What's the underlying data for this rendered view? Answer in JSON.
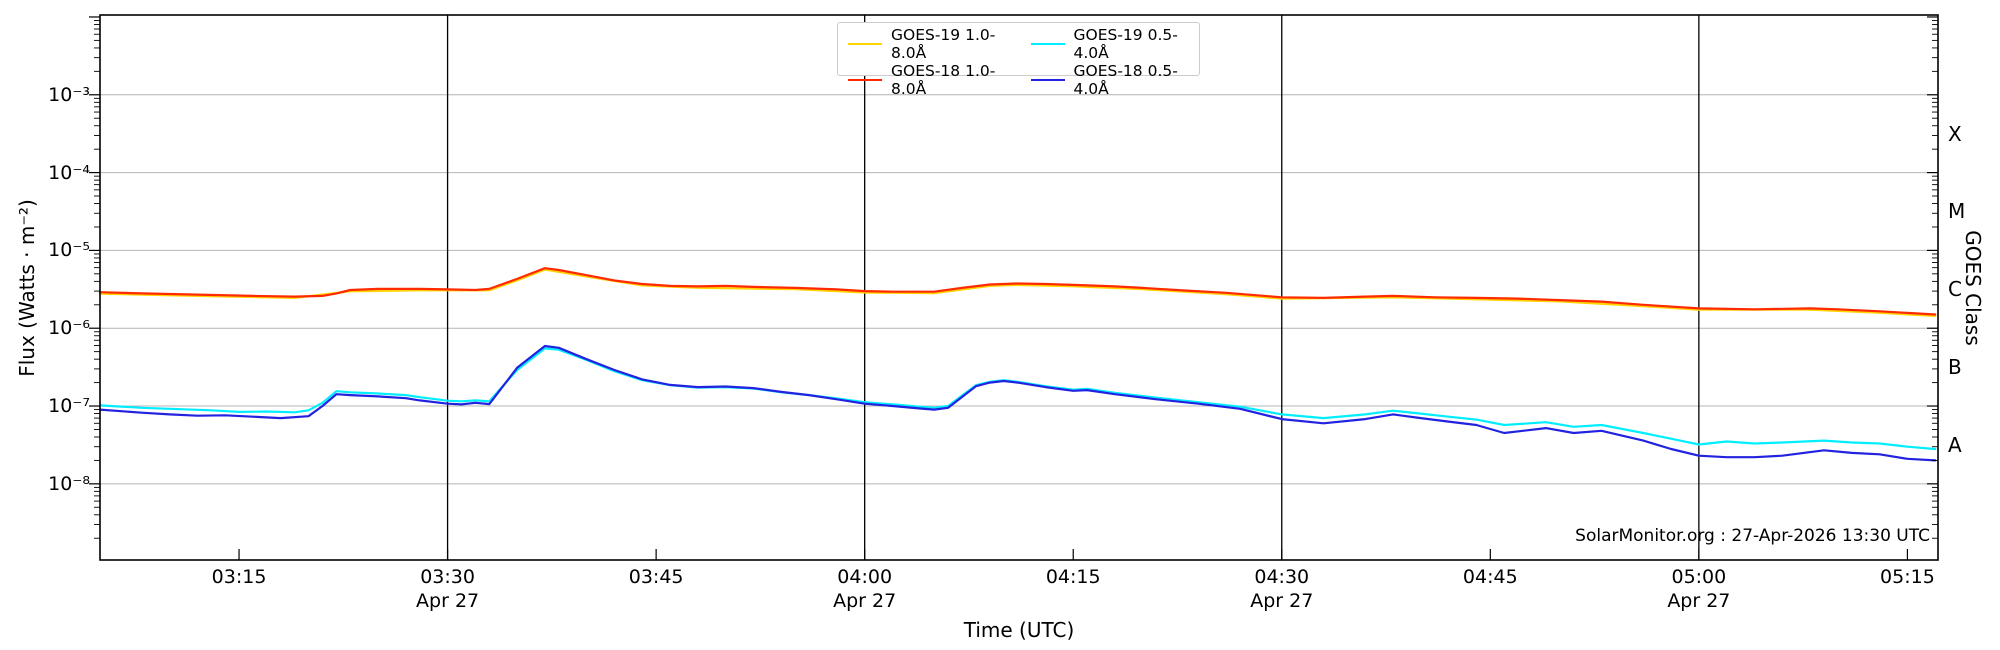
{
  "watermark": "SolarMonitor.org : 27-Apr-2026 13:30 UTC",
  "chart_data": {
    "type": "line",
    "xlabel": "Time (UTC)",
    "ylabel": "Flux (Watts · m⁻²)",
    "ylabel_right": "GOES Class",
    "date_label": "Apr 27",
    "grid": "horizontal decade gridlines, vertical black lines at each date tick",
    "legend_position": "top-center, 2 columns",
    "xlim_minutes": [
      5,
      137.2
    ],
    "ylim": [
      1.05e-09,
      0.0106
    ],
    "y_ticks": [
      {
        "exp": -3,
        "label": "10⁻³"
      },
      {
        "exp": -4,
        "label": "10⁻⁴"
      },
      {
        "exp": -5,
        "label": "10⁻⁵"
      },
      {
        "exp": -6,
        "label": "10⁻⁶"
      },
      {
        "exp": -7,
        "label": "10⁻⁷"
      },
      {
        "exp": -8,
        "label": "10⁻⁸"
      }
    ],
    "x_ticks": [
      {
        "t": 15,
        "label": "03:15"
      },
      {
        "t": 30,
        "label": "03:30",
        "date": "Apr 27"
      },
      {
        "t": 45,
        "label": "03:45"
      },
      {
        "t": 60,
        "label": "04:00",
        "date": "Apr 27"
      },
      {
        "t": 75,
        "label": "04:15"
      },
      {
        "t": 90,
        "label": "04:30",
        "date": "Apr 27"
      },
      {
        "t": 105,
        "label": "04:45"
      },
      {
        "t": 120,
        "label": "05:00",
        "date": "Apr 27"
      },
      {
        "t": 135,
        "label": "05:15"
      }
    ],
    "goes_classes": [
      {
        "label": "X",
        "between": [
          -4,
          -3
        ]
      },
      {
        "label": "M",
        "between": [
          -5,
          -4
        ]
      },
      {
        "label": "C",
        "between": [
          -6,
          -5
        ]
      },
      {
        "label": "B",
        "between": [
          -7,
          -6
        ]
      },
      {
        "label": "A",
        "between": [
          -8,
          -7
        ]
      }
    ],
    "legend": [
      {
        "id": "goes19-long",
        "label": "GOES-19 1.0-8.0Å",
        "color": "#ffd400"
      },
      {
        "id": "goes18-long",
        "label": "GOES-18 1.0-8.0Å",
        "color": "#ff2600"
      },
      {
        "id": "goes19-short",
        "label": "GOES-19 0.5-4.0Å",
        "color": "#00eeff"
      },
      {
        "id": "goes18-short",
        "label": "GOES-18 0.5-4.0Å",
        "color": "#2222e0"
      }
    ],
    "series": [
      {
        "id": "goes19-long",
        "name": "GOES-19 1.0-8.0Å",
        "color": "#ffd400",
        "points": [
          [
            5,
            2.78e-06
          ],
          [
            12,
            2.6e-06
          ],
          [
            19,
            2.45e-06
          ],
          [
            23,
            2.98e-06
          ],
          [
            28,
            3.07e-06
          ],
          [
            33,
            3.07e-06
          ],
          [
            35,
            4.13e-06
          ],
          [
            37,
            5.66e-06
          ],
          [
            40,
            4.6e-06
          ],
          [
            44,
            3.55e-06
          ],
          [
            48,
            3.31e-06
          ],
          [
            55,
            3.17e-06
          ],
          [
            60,
            2.88e-06
          ],
          [
            65,
            2.83e-06
          ],
          [
            69,
            3.5e-06
          ],
          [
            71,
            3.6e-06
          ],
          [
            75,
            3.46e-06
          ],
          [
            80,
            3.17e-06
          ],
          [
            86,
            2.74e-06
          ],
          [
            90,
            2.4e-06
          ],
          [
            98,
            2.5e-06
          ],
          [
            104,
            2.35e-06
          ],
          [
            110,
            2.21e-06
          ],
          [
            116,
            1.92e-06
          ],
          [
            120,
            1.73e-06
          ],
          [
            128,
            1.73e-06
          ],
          [
            133,
            1.58e-06
          ],
          [
            137,
            1.44e-06
          ]
        ]
      },
      {
        "id": "goes18-long",
        "name": "GOES-18 1.0-8.0Å",
        "color": "#ff2a00",
        "points": [
          [
            5,
            2.9e-06
          ],
          [
            8,
            2.8e-06
          ],
          [
            12,
            2.7e-06
          ],
          [
            16,
            2.6e-06
          ],
          [
            19,
            2.55e-06
          ],
          [
            21,
            2.6e-06
          ],
          [
            22,
            2.8e-06
          ],
          [
            23,
            3.1e-06
          ],
          [
            25,
            3.2e-06
          ],
          [
            28,
            3.2e-06
          ],
          [
            30,
            3.15e-06
          ],
          [
            32,
            3.1e-06
          ],
          [
            33,
            3.2e-06
          ],
          [
            35,
            4.3e-06
          ],
          [
            37,
            5.9e-06
          ],
          [
            38,
            5.6e-06
          ],
          [
            40,
            4.8e-06
          ],
          [
            42,
            4.1e-06
          ],
          [
            44,
            3.7e-06
          ],
          [
            46,
            3.5e-06
          ],
          [
            48,
            3.45e-06
          ],
          [
            50,
            3.5e-06
          ],
          [
            52,
            3.4e-06
          ],
          [
            55,
            3.3e-06
          ],
          [
            58,
            3.15e-06
          ],
          [
            60,
            3e-06
          ],
          [
            62,
            2.95e-06
          ],
          [
            65,
            2.95e-06
          ],
          [
            67,
            3.3e-06
          ],
          [
            69,
            3.65e-06
          ],
          [
            71,
            3.75e-06
          ],
          [
            73,
            3.7e-06
          ],
          [
            75,
            3.6e-06
          ],
          [
            78,
            3.45e-06
          ],
          [
            80,
            3.3e-06
          ],
          [
            83,
            3.05e-06
          ],
          [
            86,
            2.85e-06
          ],
          [
            90,
            2.5e-06
          ],
          [
            93,
            2.45e-06
          ],
          [
            96,
            2.55e-06
          ],
          [
            98,
            2.6e-06
          ],
          [
            101,
            2.5e-06
          ],
          [
            104,
            2.45e-06
          ],
          [
            107,
            2.4e-06
          ],
          [
            110,
            2.3e-06
          ],
          [
            113,
            2.2e-06
          ],
          [
            116,
            2e-06
          ],
          [
            120,
            1.8e-06
          ],
          [
            124,
            1.75e-06
          ],
          [
            128,
            1.8e-06
          ],
          [
            130,
            1.75e-06
          ],
          [
            133,
            1.65e-06
          ],
          [
            137,
            1.5e-06
          ]
        ]
      },
      {
        "id": "goes19-short",
        "name": "GOES-19 0.5-4.0Å",
        "color": "#00eeff",
        "points": [
          [
            5,
            1.02e-07
          ],
          [
            8,
            9.5e-08
          ],
          [
            10,
            9.2e-08
          ],
          [
            13,
            8.8e-08
          ],
          [
            15,
            8.4e-08
          ],
          [
            17,
            8.5e-08
          ],
          [
            19,
            8.3e-08
          ],
          [
            20,
            8.8e-08
          ],
          [
            21,
            1.1e-07
          ],
          [
            22,
            1.55e-07
          ],
          [
            23,
            1.5e-07
          ],
          [
            25,
            1.45e-07
          ],
          [
            27,
            1.38e-07
          ],
          [
            28,
            1.3e-07
          ],
          [
            30,
            1.17e-07
          ],
          [
            31,
            1.15e-07
          ],
          [
            32,
            1.18e-07
          ],
          [
            33,
            1.15e-07
          ],
          [
            35,
            2.9e-07
          ],
          [
            37,
            5.5e-07
          ],
          [
            38,
            5.3e-07
          ],
          [
            40,
            3.9e-07
          ],
          [
            42,
            2.8e-07
          ],
          [
            44,
            2.15e-07
          ],
          [
            46,
            1.85e-07
          ],
          [
            48,
            1.72e-07
          ],
          [
            50,
            1.75e-07
          ],
          [
            52,
            1.68e-07
          ],
          [
            54,
            1.5e-07
          ],
          [
            56,
            1.38e-07
          ],
          [
            58,
            1.25e-07
          ],
          [
            60,
            1.12e-07
          ],
          [
            62,
            1.05e-07
          ],
          [
            64,
            9.8e-08
          ],
          [
            65,
            9.5e-08
          ],
          [
            66,
            1e-07
          ],
          [
            68,
            1.85e-07
          ],
          [
            69,
            2.05e-07
          ],
          [
            70,
            2.15e-07
          ],
          [
            71,
            2.05e-07
          ],
          [
            73,
            1.8e-07
          ],
          [
            75,
            1.62e-07
          ],
          [
            76,
            1.66e-07
          ],
          [
            78,
            1.48e-07
          ],
          [
            81,
            1.28e-07
          ],
          [
            84,
            1.12e-07
          ],
          [
            87,
            9.8e-08
          ],
          [
            90,
            7.8e-08
          ],
          [
            93,
            7e-08
          ],
          [
            96,
            7.8e-08
          ],
          [
            98,
            8.7e-08
          ],
          [
            100,
            8e-08
          ],
          [
            102,
            7.3e-08
          ],
          [
            104,
            6.7e-08
          ],
          [
            106,
            5.7e-08
          ],
          [
            109,
            6.2e-08
          ],
          [
            111,
            5.4e-08
          ],
          [
            113,
            5.7e-08
          ],
          [
            116,
            4.5e-08
          ],
          [
            118,
            3.8e-08
          ],
          [
            120,
            3.2e-08
          ],
          [
            122,
            3.5e-08
          ],
          [
            124,
            3.3e-08
          ],
          [
            126,
            3.4e-08
          ],
          [
            129,
            3.6e-08
          ],
          [
            131,
            3.4e-08
          ],
          [
            133,
            3.3e-08
          ],
          [
            135,
            3e-08
          ],
          [
            137,
            2.8e-08
          ]
        ]
      },
      {
        "id": "goes18-short",
        "name": "GOES-18 0.5-4.0Å",
        "color": "#2222e0",
        "points": [
          [
            5,
            9e-08
          ],
          [
            8,
            8.2e-08
          ],
          [
            10,
            7.8e-08
          ],
          [
            12,
            7.5e-08
          ],
          [
            14,
            7.6e-08
          ],
          [
            16,
            7.3e-08
          ],
          [
            18,
            7e-08
          ],
          [
            20,
            7.4e-08
          ],
          [
            21,
            1e-07
          ],
          [
            22,
            1.42e-07
          ],
          [
            23,
            1.38e-07
          ],
          [
            25,
            1.33e-07
          ],
          [
            27,
            1.26e-07
          ],
          [
            28,
            1.18e-07
          ],
          [
            30,
            1.07e-07
          ],
          [
            31,
            1.05e-07
          ],
          [
            32,
            1.1e-07
          ],
          [
            33,
            1.06e-07
          ],
          [
            35,
            3.1e-07
          ],
          [
            37,
            5.9e-07
          ],
          [
            38,
            5.6e-07
          ],
          [
            40,
            4e-07
          ],
          [
            42,
            2.9e-07
          ],
          [
            44,
            2.2e-07
          ],
          [
            46,
            1.87e-07
          ],
          [
            48,
            1.75e-07
          ],
          [
            50,
            1.78e-07
          ],
          [
            52,
            1.7e-07
          ],
          [
            54,
            1.52e-07
          ],
          [
            56,
            1.38e-07
          ],
          [
            58,
            1.22e-07
          ],
          [
            60,
            1.07e-07
          ],
          [
            62,
            1e-07
          ],
          [
            64,
            9.3e-08
          ],
          [
            65,
            9e-08
          ],
          [
            66,
            9.5e-08
          ],
          [
            68,
            1.8e-07
          ],
          [
            69,
            2e-07
          ],
          [
            70,
            2.1e-07
          ],
          [
            71,
            2e-07
          ],
          [
            73,
            1.75e-07
          ],
          [
            75,
            1.57e-07
          ],
          [
            76,
            1.6e-07
          ],
          [
            78,
            1.42e-07
          ],
          [
            81,
            1.22e-07
          ],
          [
            84,
            1.07e-07
          ],
          [
            87,
            9.2e-08
          ],
          [
            90,
            6.8e-08
          ],
          [
            93,
            6e-08
          ],
          [
            96,
            6.8e-08
          ],
          [
            98,
            7.8e-08
          ],
          [
            100,
            7e-08
          ],
          [
            102,
            6.3e-08
          ],
          [
            104,
            5.7e-08
          ],
          [
            106,
            4.5e-08
          ],
          [
            109,
            5.2e-08
          ],
          [
            111,
            4.5e-08
          ],
          [
            113,
            4.8e-08
          ],
          [
            116,
            3.6e-08
          ],
          [
            118,
            2.8e-08
          ],
          [
            120,
            2.3e-08
          ],
          [
            122,
            2.2e-08
          ],
          [
            124,
            2.2e-08
          ],
          [
            126,
            2.3e-08
          ],
          [
            129,
            2.7e-08
          ],
          [
            131,
            2.5e-08
          ],
          [
            133,
            2.4e-08
          ],
          [
            135,
            2.1e-08
          ],
          [
            137,
            2e-08
          ]
        ]
      }
    ]
  }
}
